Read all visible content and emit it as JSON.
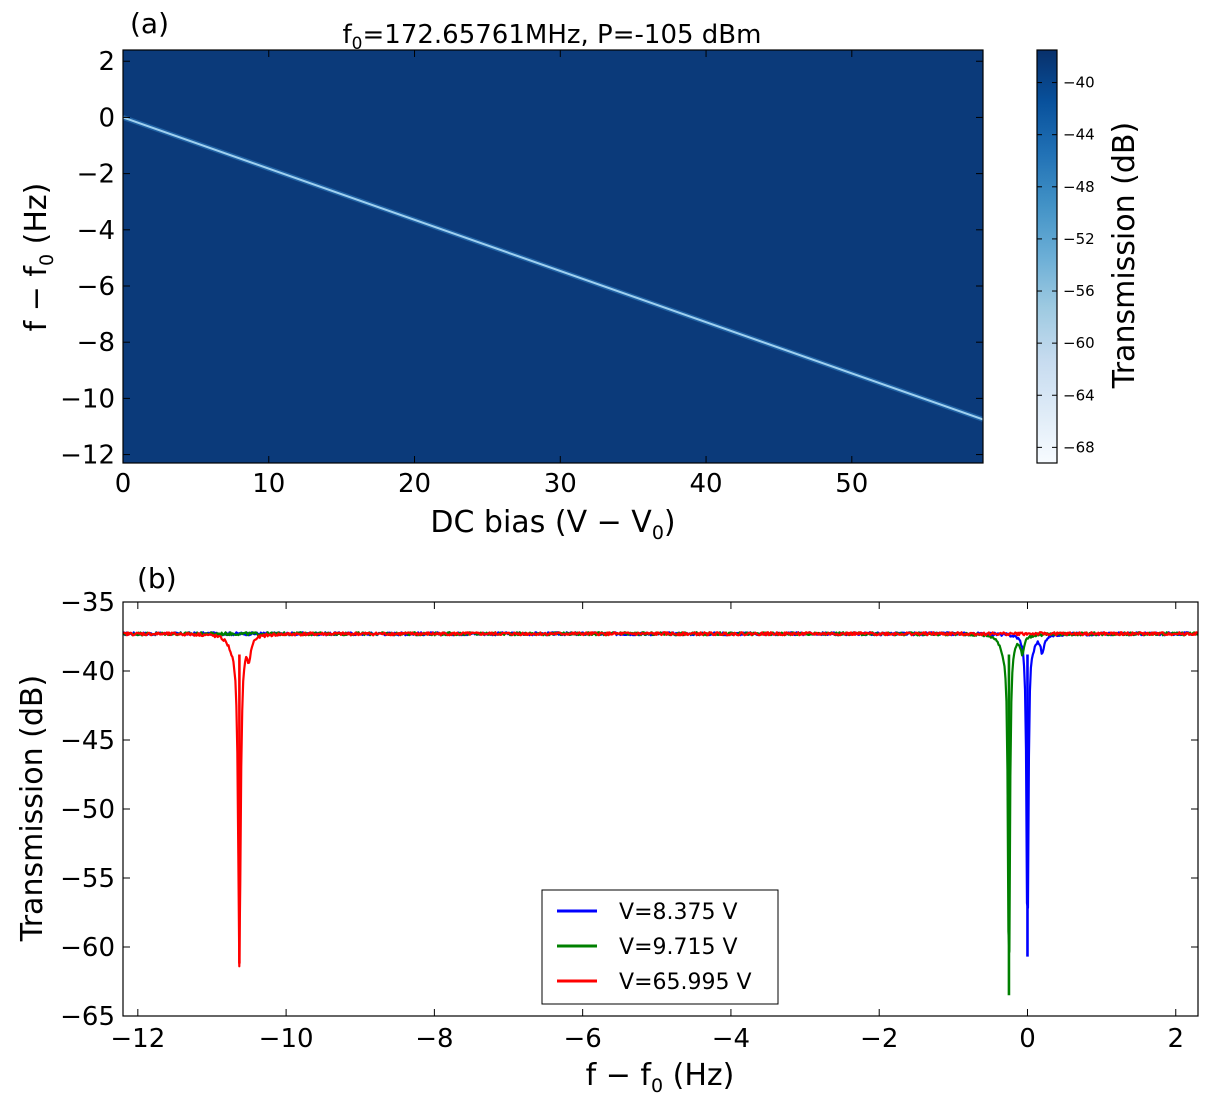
{
  "chart_data": [
    {
      "type": "heatmap",
      "panel_label": "(a)",
      "title_parts": {
        "f0_symbol": "f",
        "f0_sub": "0",
        "eq1": "=",
        "f0_value": "172.65761MHz, ",
        "p_symbol": "P",
        "eq2": "=",
        "p_value": "-105 dBm"
      },
      "xlabel_parts": {
        "text": "DC bias ",
        "math": "(V − V",
        "sub": "0",
        "close": ")"
      },
      "ylabel_parts": {
        "math": "f − f",
        "sub": "0",
        "text": " (Hz)"
      },
      "xlim": [
        0,
        59
      ],
      "ylim": [
        -12.3,
        2.4
      ],
      "xticks": [
        0,
        10,
        20,
        30,
        40,
        50
      ],
      "yticks": [
        2,
        0,
        -2,
        -4,
        -6,
        -8,
        -10,
        -12
      ],
      "ytick_labels": [
        "2",
        "0",
        "−2",
        "−4",
        "−6",
        "−8",
        "−10",
        "−12"
      ],
      "background_level_db": -37.5,
      "resonance_line": {
        "x": [
          0,
          59
        ],
        "y": [
          0,
          -10.75
        ],
        "level_db": -48
      },
      "colorbar": {
        "label": "Transmission (dB)",
        "range": [
          -69.2,
          -37.5
        ],
        "ticks": [
          -40,
          -44,
          -48,
          -52,
          -56,
          -60,
          -64,
          -68
        ],
        "tick_labels": [
          "−40",
          "−44",
          "−48",
          "−52",
          "−56",
          "−60",
          "−64",
          "−68"
        ],
        "colormap": "Blues",
        "color_low": "#f7fbff",
        "color_high": "#08306b"
      }
    },
    {
      "type": "line",
      "panel_label": "(b)",
      "xlabel_parts": {
        "math": "f − f",
        "sub": "0",
        "text": " (Hz)"
      },
      "ylabel": "Transmission (dB)",
      "xlim": [
        -12.2,
        2.3
      ],
      "ylim": [
        -65,
        -35
      ],
      "xticks": [
        -12,
        -10,
        -8,
        -6,
        -4,
        -2,
        0,
        2
      ],
      "xtick_labels": [
        "−12",
        "−10",
        "−8",
        "−6",
        "−4",
        "−2",
        "0",
        "2"
      ],
      "yticks": [
        -35,
        -40,
        -45,
        -50,
        -55,
        -60,
        -65
      ],
      "ytick_labels": [
        "−35",
        "−40",
        "−45",
        "−50",
        "−55",
        "−60",
        "−65"
      ],
      "baseline_db": -37.3,
      "legend_position": "lower center",
      "series": [
        {
          "name_symbol": "V",
          "name_eq": "=",
          "name_value": "8.375 V",
          "color": "#0000ff",
          "dips": [
            {
              "center": 0.0,
              "depth_db": -60.7,
              "width_hz": 0.015
            },
            {
              "center": 0.2,
              "depth_db": -38.6,
              "width_hz": 0.03
            },
            {
              "center": 0.08,
              "depth_db": -37.8,
              "width_hz": 0.03
            }
          ]
        },
        {
          "name_symbol": "V",
          "name_eq": "=",
          "name_value": "9.715 V",
          "color": "#008000",
          "dips": [
            {
              "center": -0.25,
              "depth_db": -63.5,
              "width_hz": 0.015
            },
            {
              "center": -0.07,
              "depth_db": -38.6,
              "width_hz": 0.03
            },
            {
              "center": -0.32,
              "depth_db": -38.2,
              "width_hz": 0.06
            }
          ]
        },
        {
          "name_symbol": "V",
          "name_eq": "=",
          "name_value": "65.995 V",
          "color": "#ff0000",
          "dips": [
            {
              "center": -10.63,
              "depth_db": -61.2,
              "width_hz": 0.02
            },
            {
              "center": -10.5,
              "depth_db": -38.8,
              "width_hz": 0.03
            },
            {
              "center": -10.72,
              "depth_db": -38.0,
              "width_hz": 0.08
            }
          ]
        }
      ]
    }
  ]
}
